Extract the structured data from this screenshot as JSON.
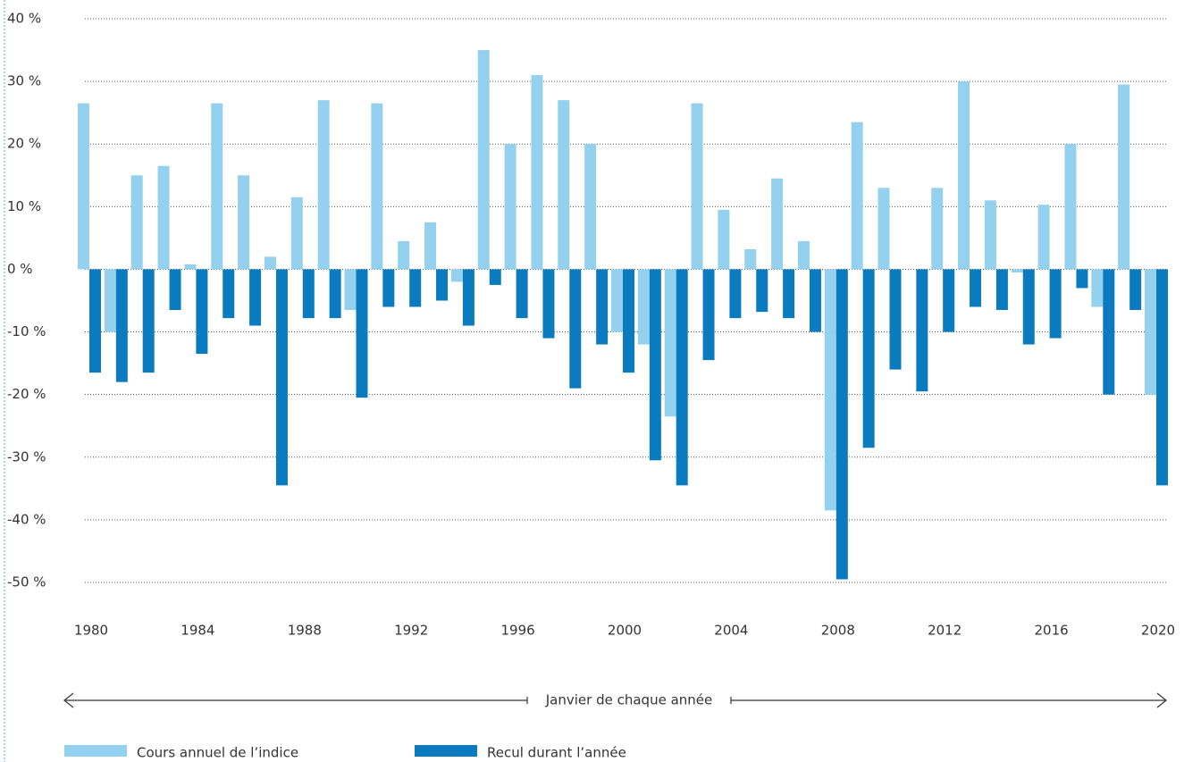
{
  "chart_data": {
    "type": "bar",
    "categories": [
      "1980",
      null,
      null,
      null,
      "1984",
      null,
      null,
      null,
      "1988",
      null,
      null,
      null,
      "1992",
      null,
      null,
      null,
      "1996",
      null,
      null,
      null,
      "2000",
      null,
      null,
      null,
      "2004",
      null,
      null,
      null,
      "2008",
      null,
      null,
      null,
      "2012",
      null,
      null,
      null,
      "2016",
      null,
      null,
      null,
      "2020"
    ],
    "series": [
      {
        "name": "Cours annuel de l’indice",
        "color": "#93d1ef",
        "values": [
          26.5,
          -10,
          15,
          16.5,
          0.8,
          26.5,
          15,
          2,
          11.5,
          27,
          -6.5,
          26.5,
          4.5,
          7.5,
          -2,
          35,
          20,
          31,
          27,
          20,
          -10,
          -12,
          -23.5,
          26.5,
          9.5,
          3.2,
          14.5,
          4.5,
          -38.5,
          23.5,
          13,
          0,
          13,
          30,
          11,
          -0.5,
          10.3,
          20,
          -6,
          29.5,
          -20
        ]
      },
      {
        "name": "Recul durant l’année",
        "color": "#0a7bbf",
        "values": [
          -16.5,
          -18,
          -16.5,
          -6.5,
          -13.5,
          -7.8,
          -9,
          -34.5,
          -7.8,
          -7.8,
          -20.5,
          -6,
          -6,
          -5,
          -9,
          -2.5,
          -7.8,
          -11,
          -19,
          -12,
          -16.5,
          -30.5,
          -34.5,
          -14.5,
          -7.8,
          -6.8,
          -7.8,
          -10,
          -49.5,
          -28.5,
          -16,
          -19.5,
          -10,
          -6,
          -6.5,
          -12,
          -11,
          -3,
          -20,
          -6.5,
          -34.5
        ]
      }
    ],
    "ylim": [
      -50,
      40
    ],
    "yticks": [
      {
        "value": -50,
        "label": "-50 %"
      },
      {
        "value": -40,
        "label": "-40 %"
      },
      {
        "value": -30,
        "label": "-30 %"
      },
      {
        "value": -20,
        "label": "-20 %"
      },
      {
        "value": -10,
        "label": "-10 %"
      },
      {
        "value": 0,
        "label": "0 %"
      },
      {
        "value": 10,
        "label": "10 %"
      },
      {
        "value": 20,
        "label": "20 %"
      },
      {
        "value": 30,
        "label": "30 %"
      },
      {
        "value": 40,
        "label": "40 %"
      }
    ],
    "grid": true,
    "annotation": "Janvier de chaque année"
  }
}
